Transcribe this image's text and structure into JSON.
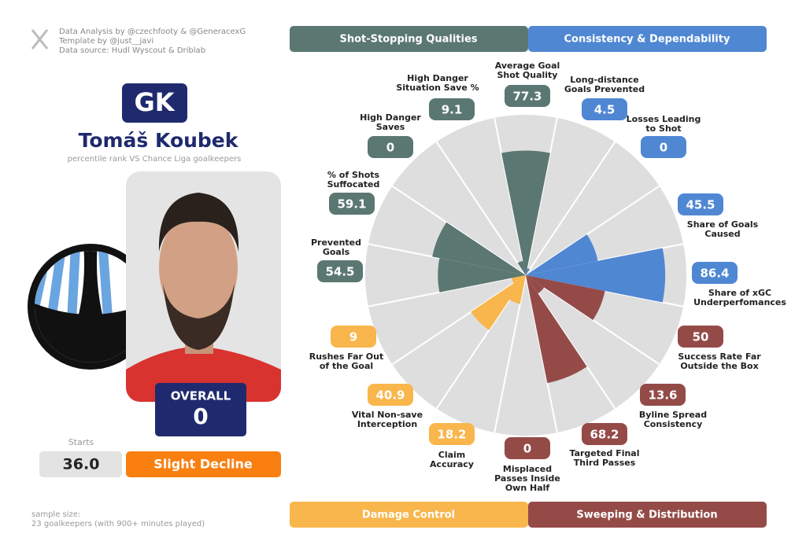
{
  "credits": [
    "Data Analysis by @czechfooty & @GeneracexG",
    "Template by @just__javi",
    "Data source: Hudl Wyscout & Driblab"
  ],
  "player": {
    "position": "GK",
    "name": "Tomáš Koubek",
    "subtitle": "percentile rank VS Chance Liga goalkeepers",
    "overall_label": "OVERALL",
    "overall": 0,
    "starts_label": "Starts",
    "starts": "36.0",
    "trend": "Slight Decline"
  },
  "sample": [
    "sample size:",
    "23 goalkeepers (with 900+ minutes played)"
  ],
  "chart_data": {
    "type": "pizza",
    "rlim": [
      0,
      100
    ],
    "series": [
      {
        "name": "Shot-Stopping Qualities",
        "color": "#5b7771",
        "categories": [
          "Prevented Goals",
          "% of Shots Suffocated",
          "High Danger Saves",
          "High Danger Situation Save %",
          "Average Goal Shot Quality"
        ],
        "values": [
          54.5,
          59.1,
          0,
          9.1,
          77.3
        ]
      },
      {
        "name": "Consistency & Dependability",
        "color": "#4f87d3",
        "categories": [
          "Long-distance Goals Prevented",
          "Losses Leading to Shot",
          "Share of Goals Caused",
          "Share of xGC Underperfomances"
        ],
        "values": [
          4.5,
          0,
          45.5,
          86.4
        ]
      },
      {
        "name": "Sweeping & Distribution",
        "color": "#944b48",
        "categories": [
          "Success Rate Far Outside the Box",
          "Byline Spread Consistency",
          "Targeted Final Third Passes",
          "Misplaced Passes Inside Own Half"
        ],
        "values": [
          50,
          13.6,
          68.2,
          0
        ]
      },
      {
        "name": "Damage Control",
        "color": "#f8b64c",
        "categories": [
          "Claim Accuracy",
          "Vital Non-save Interception",
          "Rushes Far Out of the Goal"
        ],
        "values": [
          18.2,
          40.9,
          9
        ]
      }
    ]
  }
}
